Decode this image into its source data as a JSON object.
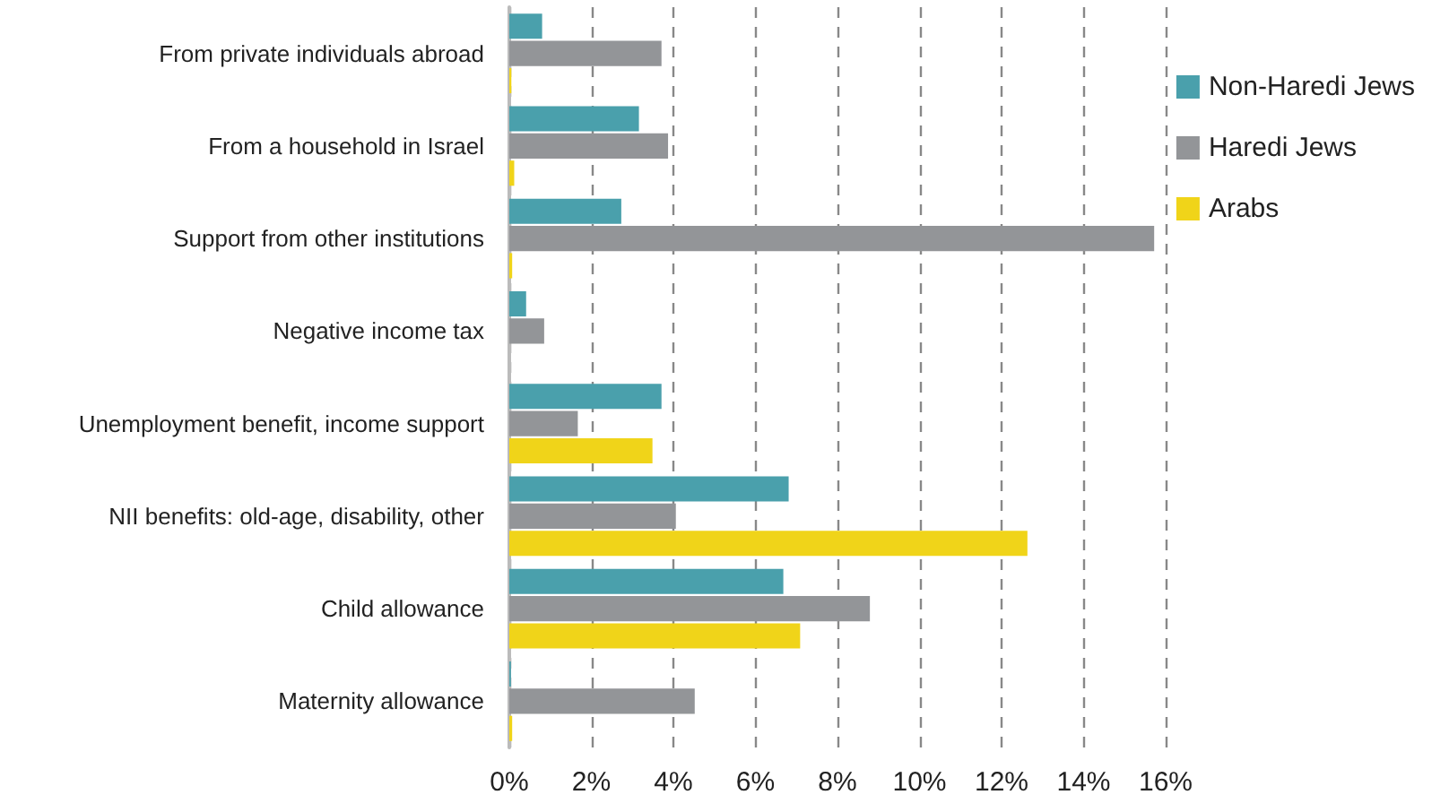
{
  "chart_data": {
    "type": "bar",
    "orientation": "horizontal",
    "categories": [
      "From private individuals abroad",
      "From a household in Israel",
      "Support from other institutions",
      "Negative income tax",
      "Unemployment benefit, income support",
      "NII benefits: old-age, disability, other",
      "Child allowance",
      "Maternity allowance"
    ],
    "series": [
      {
        "name": "Non-Haredi Jews",
        "color": "#4aa0ac",
        "values": [
          0.8,
          3.16,
          2.73,
          0.41,
          3.71,
          6.81,
          6.68,
          0.04
        ]
      },
      {
        "name": "Haredi Jews",
        "color": "#939598",
        "values": [
          3.71,
          3.87,
          15.72,
          0.85,
          1.67,
          4.06,
          8.79,
          4.52
        ]
      },
      {
        "name": "Arabs",
        "color": "#f0d419",
        "values": [
          0.05,
          0.12,
          0.07,
          0,
          3.49,
          12.63,
          7.09,
          0.07
        ]
      }
    ],
    "xlim": [
      0,
      16
    ],
    "xticks": [
      {
        "value": 0,
        "label": "0%"
      },
      {
        "value": 2,
        "label": "2%"
      },
      {
        "value": 4,
        "label": "4%"
      },
      {
        "value": 6,
        "label": "6%"
      },
      {
        "value": 8,
        "label": "8%"
      },
      {
        "value": 10,
        "label": "10%"
      },
      {
        "value": 12,
        "label": "12%"
      },
      {
        "value": 14,
        "label": "14%"
      },
      {
        "value": 16,
        "label": "16%"
      }
    ],
    "grid": "x",
    "legend": "right"
  }
}
